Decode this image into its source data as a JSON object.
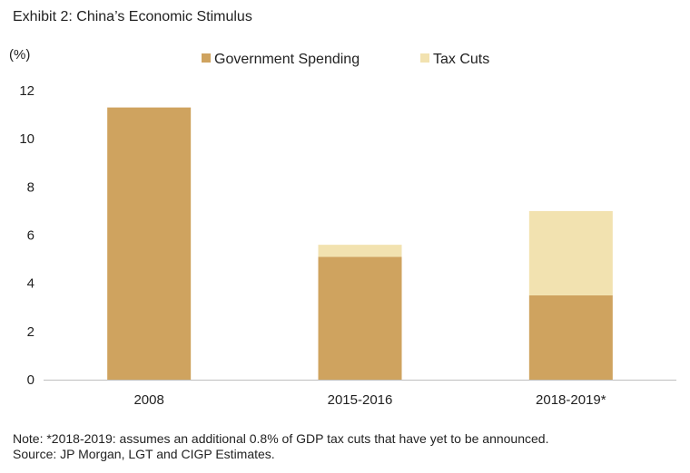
{
  "title": "Exhibit 2: China’s Economic Stimulus",
  "note_line1": "Note: *2018-2019: assumes an additional 0.8% of GDP tax cuts that have yet to be announced.",
  "note_line2": "Source: JP Morgan, LGT and CIGP Estimates.",
  "colors": {
    "government_spending": "#CFA35F",
    "tax_cuts": "#F2E2B0",
    "axis": "#BFBFBF"
  },
  "chart_data": {
    "type": "bar",
    "stacked": true,
    "title": "Exhibit 2: China’s Economic Stimulus",
    "ylabel": "(%)",
    "xlabel": "",
    "ylim": [
      0,
      12
    ],
    "yticks": [
      0,
      2,
      4,
      6,
      8,
      10,
      12
    ],
    "categories": [
      "2008",
      "2015-2016",
      "2018-2019*"
    ],
    "series": [
      {
        "name": "Government Spending",
        "values": [
          11.3,
          5.1,
          3.5
        ]
      },
      {
        "name": "Tax Cuts",
        "values": [
          0,
          0.5,
          3.5
        ]
      }
    ],
    "legend_position": "top-center"
  }
}
